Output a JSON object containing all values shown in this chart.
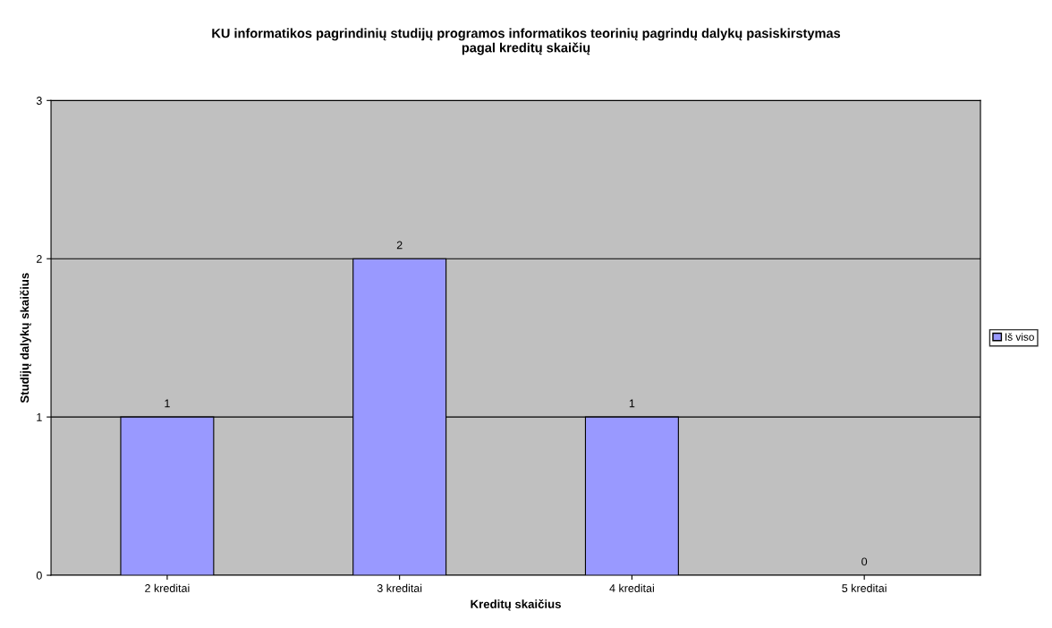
{
  "chart_data": {
    "type": "bar",
    "title": "KU informatikos pagrindinių studijų programos informatikos teorinių pagrindų dalykų pasiskirstymas\npagal kreditų skaičių",
    "xlabel": "Kreditų skaičius",
    "ylabel": "Studijų dalykų skaičius",
    "categories": [
      "2 kreditai",
      "3 kreditai",
      "4 kreditai",
      "5 kreditai"
    ],
    "series": [
      {
        "name": "Iš viso",
        "color": "#9999ff",
        "values": [
          1,
          2,
          1,
          0
        ]
      }
    ],
    "ylim": [
      0,
      3
    ],
    "yticks": [
      0,
      1,
      2,
      3
    ],
    "grid": "y",
    "legend": "right",
    "data_labels": true
  }
}
